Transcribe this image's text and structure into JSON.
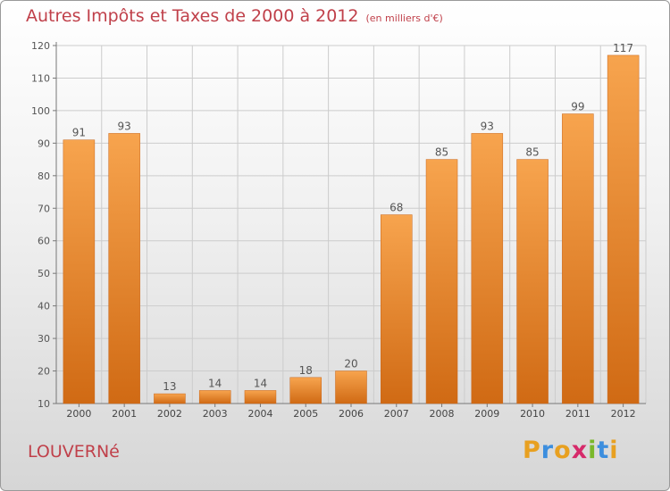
{
  "title": "Autres Impôts et Taxes de 2000 à 2012",
  "subtitle": "(en milliers d'€)",
  "commune": "LOUVERNé",
  "logo": {
    "letters": [
      "P",
      "r",
      "o",
      "x",
      "i",
      "t",
      "i"
    ],
    "colors": [
      "#e8a020",
      "#3c8ede",
      "#e8a020",
      "#d62a6a",
      "#7ab82a",
      "#3c8ede",
      "#e8a020"
    ]
  },
  "colors": {
    "bar_top": "#f7a44e",
    "bar_bottom": "#d06a14",
    "title": "#c0404a",
    "grid": "#cccccc"
  },
  "chart_data": {
    "type": "bar",
    "categories": [
      "2000",
      "2001",
      "2002",
      "2003",
      "2004",
      "2005",
      "2006",
      "2007",
      "2008",
      "2009",
      "2010",
      "2011",
      "2012"
    ],
    "values": [
      91,
      93,
      13,
      14,
      14,
      18,
      20,
      68,
      85,
      93,
      85,
      99,
      117
    ],
    "data_labels": [
      "91",
      "93",
      "13",
      "14",
      "14",
      "18",
      "20",
      "68",
      "85",
      "93",
      "85",
      "99",
      "117"
    ],
    "yticks": [
      10,
      20,
      30,
      40,
      50,
      60,
      70,
      80,
      90,
      100,
      110,
      120
    ],
    "ylim": [
      10,
      120
    ],
    "grid": true,
    "xlabel": "",
    "ylabel": ""
  }
}
